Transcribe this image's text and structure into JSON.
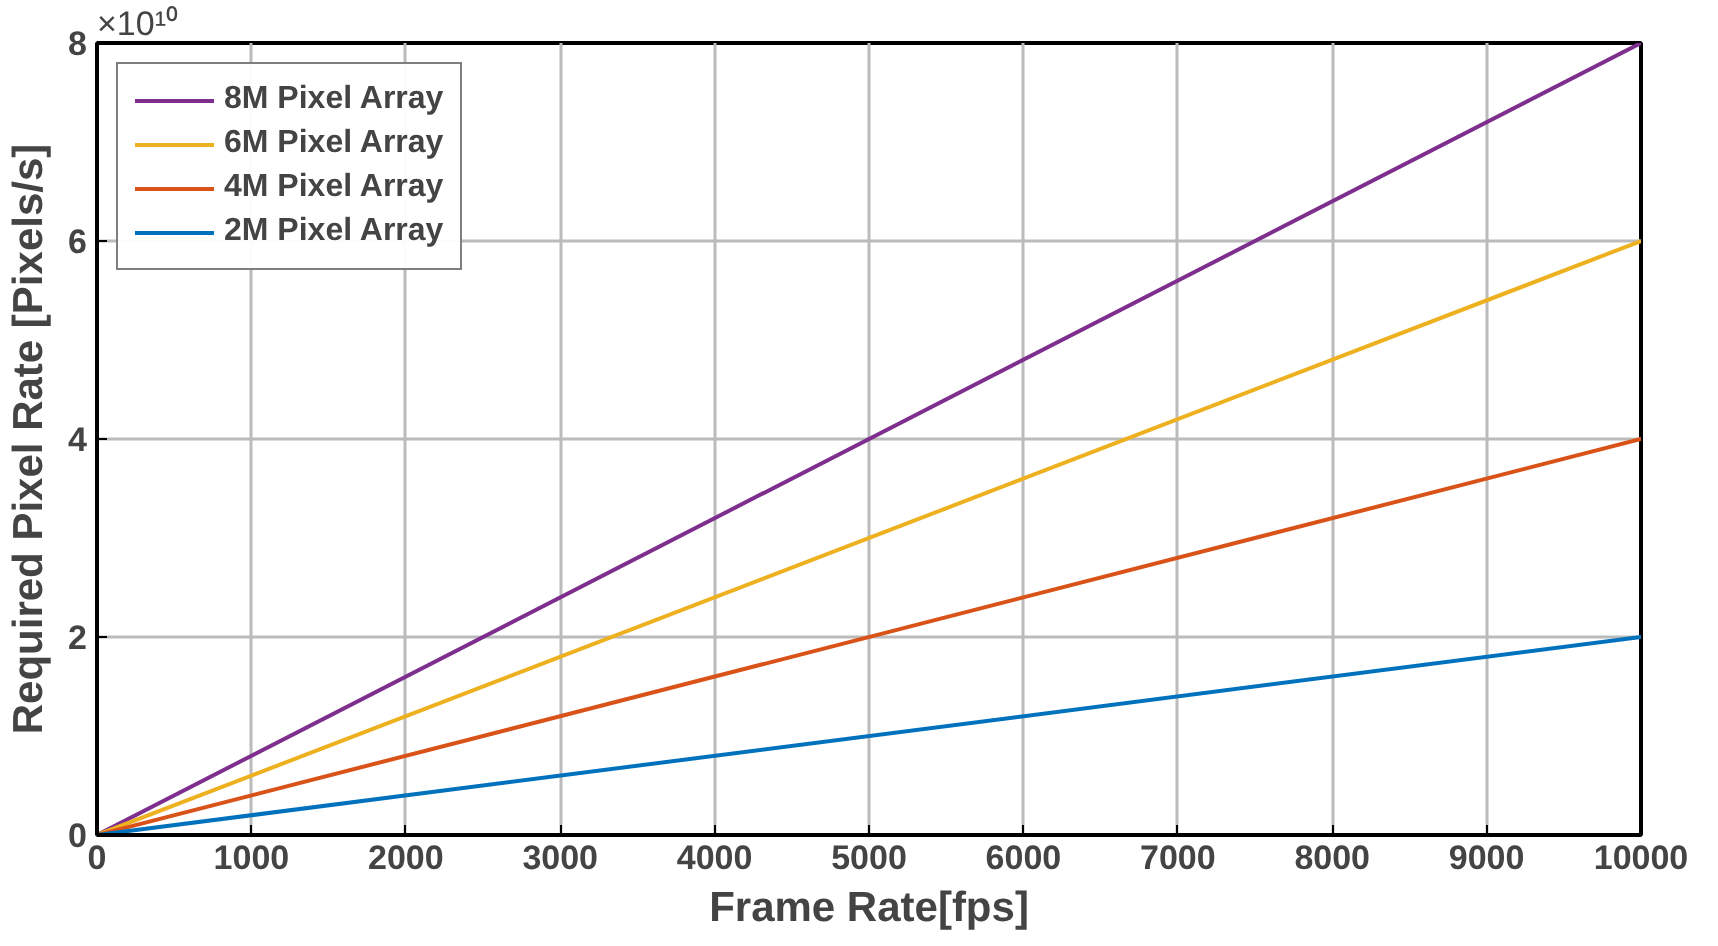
{
  "chart_data": {
    "type": "line",
    "xlabel": "Frame Rate[fps]",
    "ylabel": "Required Pixel Rate [Pixels/s]",
    "annotations": [
      "×10¹⁰"
    ],
    "x": [
      0,
      10000
    ],
    "series": [
      {
        "name": "8M Pixel Array",
        "color": "#7e2f8e",
        "values": [
          0,
          8
        ]
      },
      {
        "name": "6M Pixel Array",
        "color": "#edb120",
        "values": [
          0,
          6
        ]
      },
      {
        "name": "4M Pixel Array",
        "color": "#d95319",
        "values": [
          0,
          4
        ]
      },
      {
        "name": "2M Pixel Array",
        "color": "#0072bd",
        "values": [
          0,
          2
        ]
      }
    ],
    "xlim": [
      0,
      10000
    ],
    "ylim": [
      0,
      8
    ],
    "xticks": [
      0,
      1000,
      2000,
      3000,
      4000,
      5000,
      6000,
      7000,
      8000,
      9000,
      10000
    ],
    "yticks": [
      0,
      2,
      4,
      6,
      8
    ],
    "grid": true,
    "legend": "top left",
    "marker": "none",
    "line_style": "solid"
  }
}
